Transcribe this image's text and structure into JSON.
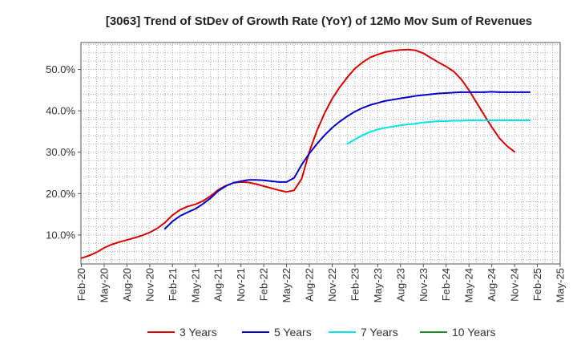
{
  "chart_data": {
    "type": "line",
    "title": "[3063]  Trend of StDev of Growth Rate (YoY) of 12Mo Mov Sum of Revenues",
    "xlabel": "",
    "ylabel": "",
    "ylim": [
      3.0,
      56.5
    ],
    "grid": true,
    "legend_position": "bottom",
    "x_tick_labels": [
      "Feb-20",
      "May-20",
      "Aug-20",
      "Nov-20",
      "Feb-21",
      "May-21",
      "Aug-21",
      "Nov-21",
      "Feb-22",
      "May-22",
      "Aug-22",
      "Nov-22",
      "Feb-23",
      "May-23",
      "Aug-23",
      "Nov-23",
      "Feb-24",
      "May-24",
      "Aug-24",
      "Nov-24",
      "Feb-25",
      "May-25"
    ],
    "y_ticks": [
      10,
      20,
      30,
      40,
      50
    ],
    "y_tick_labels": [
      "10.0%",
      "20.0%",
      "30.0%",
      "40.0%",
      "50.0%"
    ],
    "x_months": [
      0,
      1,
      2,
      3,
      4,
      5,
      6,
      7,
      8,
      9,
      10,
      11,
      12,
      13,
      14,
      15,
      16,
      17,
      18,
      19,
      20,
      21,
      22,
      23,
      24,
      25,
      26,
      27,
      28,
      29,
      30,
      31,
      32,
      33,
      34,
      35,
      36,
      37,
      38,
      39,
      40,
      41,
      42,
      43,
      44,
      45,
      46,
      47,
      48,
      49,
      50,
      51,
      52,
      53,
      54,
      55,
      56,
      57,
      58,
      59,
      60
    ],
    "series": [
      {
        "name": "3 Years",
        "color": "#dd0000",
        "start_month": 0,
        "values": [
          4.4,
          5.0,
          5.8,
          6.9,
          7.7,
          8.3,
          8.8,
          9.3,
          9.9,
          10.6,
          11.6,
          13.0,
          14.8,
          16.1,
          16.9,
          17.4,
          18.2,
          19.4,
          20.9,
          21.9,
          22.6,
          22.8,
          22.7,
          22.3,
          21.8,
          21.3,
          20.8,
          20.4,
          20.8,
          23.6,
          30.1,
          35.2,
          39.4,
          42.9,
          45.7,
          48.1,
          50.2,
          51.7,
          52.9,
          53.6,
          54.2,
          54.5,
          54.7,
          54.8,
          54.6,
          53.9,
          52.8,
          51.7,
          50.7,
          49.5,
          47.6,
          45.0,
          42.0,
          39.0,
          36.1,
          33.4,
          31.5,
          30.1
        ]
      },
      {
        "name": "5 Years",
        "color": "#0000cc",
        "start_month": 11,
        "values": [
          11.5,
          13.3,
          14.6,
          15.5,
          16.3,
          17.5,
          18.9,
          20.6,
          21.8,
          22.6,
          23.0,
          23.3,
          23.3,
          23.2,
          23.0,
          22.8,
          22.8,
          23.8,
          27.0,
          29.7,
          32.0,
          34.1,
          35.9,
          37.4,
          38.7,
          39.8,
          40.7,
          41.4,
          41.9,
          42.4,
          42.7,
          43.0,
          43.3,
          43.6,
          43.8,
          44.0,
          44.2,
          44.3,
          44.4,
          44.5,
          44.5,
          44.5,
          44.5,
          44.6,
          44.5,
          44.5,
          44.5,
          44.5,
          44.5
        ]
      },
      {
        "name": "7 Years",
        "color": "#00e5e5",
        "start_month": 35,
        "values": [
          32.0,
          33.1,
          34.1,
          34.9,
          35.5,
          35.9,
          36.2,
          36.5,
          36.7,
          36.9,
          37.2,
          37.3,
          37.5,
          37.5,
          37.6,
          37.6,
          37.7,
          37.7,
          37.7,
          37.7,
          37.7,
          37.7,
          37.7,
          37.7,
          37.7
        ]
      },
      {
        "name": "10 Years",
        "color": "#228822",
        "start_month": 60,
        "values": []
      }
    ]
  }
}
